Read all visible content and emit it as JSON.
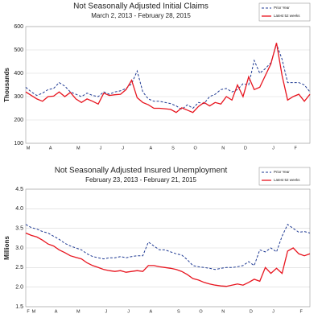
{
  "chart_data": [
    {
      "type": "line",
      "title": "Not Seasonally Adjusted Initial Claims",
      "subtitle": "March 2, 2013  -  February 28, 2015",
      "y_label": "Thousands",
      "categories": [
        "M",
        null,
        null,
        null,
        "A",
        null,
        null,
        null,
        null,
        "M",
        null,
        null,
        null,
        "J",
        null,
        null,
        null,
        "J",
        null,
        null,
        null,
        null,
        "A",
        null,
        null,
        null,
        "S",
        null,
        null,
        null,
        "O",
        null,
        null,
        null,
        null,
        "N",
        null,
        null,
        null,
        "D",
        null,
        null,
        null,
        null,
        "J",
        null,
        null,
        null,
        "F",
        null,
        null,
        null
      ],
      "series": [
        {
          "name": "Prior Year",
          "color": "#1f3a93",
          "dash": true,
          "values": [
            340,
            320,
            305,
            315,
            330,
            335,
            360,
            345,
            320,
            310,
            300,
            315,
            305,
            300,
            320,
            310,
            320,
            325,
            335,
            355,
            410,
            320,
            290,
            280,
            280,
            275,
            270,
            260,
            245,
            265,
            250,
            275,
            270,
            300,
            310,
            330,
            335,
            320,
            330,
            355,
            350,
            455,
            400,
            420,
            445,
            525,
            460,
            360,
            360,
            360,
            350,
            320
          ]
        },
        {
          "name": "Latest 52 weeks",
          "color": "#e8141e",
          "dash": false,
          "values": [
            320,
            305,
            290,
            280,
            300,
            302,
            320,
            300,
            318,
            290,
            275,
            290,
            280,
            268,
            315,
            305,
            308,
            310,
            330,
            370,
            295,
            275,
            265,
            250,
            250,
            248,
            245,
            232,
            252,
            242,
            232,
            258,
            275,
            260,
            275,
            268,
            300,
            285,
            350,
            300,
            385,
            330,
            340,
            390,
            440,
            530,
            390,
            285,
            300,
            310,
            280,
            310
          ]
        }
      ],
      "ylim": [
        100,
        600
      ],
      "yticks": [
        100,
        200,
        300,
        400,
        500,
        600
      ],
      "grid": true,
      "legend": "top right"
    },
    {
      "type": "line",
      "title": "Not Seasonally Adjusted Insured Unemployment",
      "subtitle": "February 23, 2013  -  February 21, 2015",
      "y_label": "Millions",
      "categories": [
        "F",
        "M",
        null,
        null,
        null,
        "A",
        null,
        null,
        null,
        "M",
        null,
        null,
        null,
        null,
        "J",
        null,
        null,
        null,
        "J",
        null,
        null,
        null,
        "A",
        null,
        null,
        null,
        null,
        "S",
        null,
        null,
        null,
        "O",
        null,
        null,
        null,
        "N",
        null,
        null,
        null,
        null,
        "D",
        null,
        null,
        null,
        "J",
        null,
        null,
        null,
        null,
        "F",
        null,
        null
      ],
      "series": [
        {
          "name": "Prior Year",
          "color": "#1f3a93",
          "dash": true,
          "values": [
            3.6,
            3.52,
            3.48,
            3.42,
            3.38,
            3.3,
            3.22,
            3.12,
            3.05,
            3.0,
            2.95,
            2.85,
            2.78,
            2.75,
            2.72,
            2.75,
            2.75,
            2.78,
            2.75,
            2.78,
            2.8,
            2.8,
            3.15,
            3.05,
            2.95,
            2.95,
            2.9,
            2.85,
            2.82,
            2.7,
            2.55,
            2.52,
            2.5,
            2.48,
            2.45,
            2.48,
            2.5,
            2.5,
            2.52,
            2.55,
            2.65,
            2.55,
            2.95,
            2.9,
            3.0,
            2.9,
            3.3,
            3.6,
            3.5,
            3.4,
            3.42,
            3.38
          ]
        },
        {
          "name": "Latest 52 weeks",
          "color": "#e8141e",
          "dash": false,
          "values": [
            3.38,
            3.32,
            3.28,
            3.2,
            3.1,
            3.05,
            2.95,
            2.88,
            2.8,
            2.76,
            2.72,
            2.62,
            2.55,
            2.5,
            2.45,
            2.42,
            2.4,
            2.42,
            2.38,
            2.4,
            2.42,
            2.4,
            2.55,
            2.55,
            2.52,
            2.5,
            2.48,
            2.45,
            2.4,
            2.32,
            2.22,
            2.18,
            2.12,
            2.08,
            2.05,
            2.03,
            2.02,
            2.05,
            2.08,
            2.05,
            2.12,
            2.2,
            2.15,
            2.5,
            2.35,
            2.48,
            2.35,
            2.92,
            3.0,
            2.85,
            2.8,
            2.85
          ]
        }
      ],
      "ylim": [
        1.5,
        4.5
      ],
      "yticks": [
        1.5,
        {
          "value": 2,
          "label": "2.0"
        },
        2.5,
        {
          "value": 3,
          "label": "3.0"
        },
        3.5,
        {
          "value": 4,
          "label": "4.0"
        },
        4.5
      ],
      "grid": true,
      "legend": "top right"
    }
  ]
}
